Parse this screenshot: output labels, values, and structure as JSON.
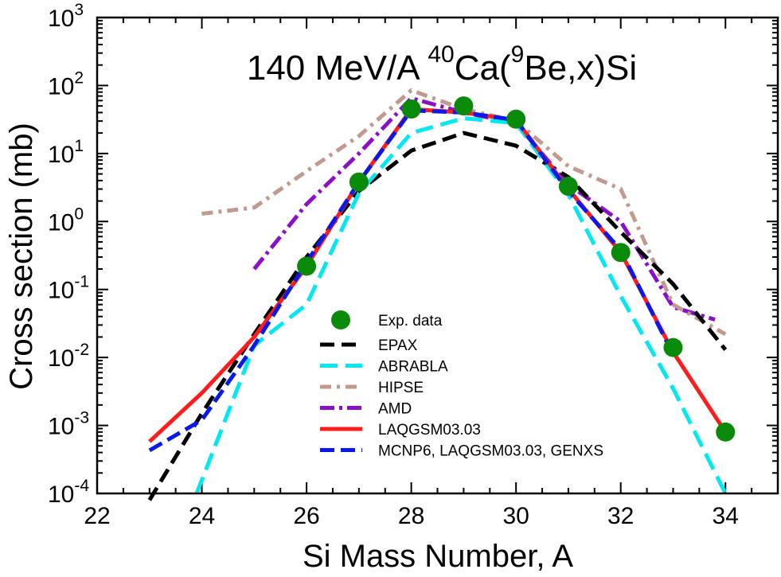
{
  "chart_data": {
    "type": "line",
    "title": {
      "prefix": "140 MeV/A ",
      "sup1": "40",
      "mid": "Ca(",
      "sup2": "9",
      "suffix": "Be,x)Si"
    },
    "xlabel": "Si Mass Number, A",
    "ylabel": "Cross section (mb)",
    "xlim": [
      22,
      35
    ],
    "ylim": [
      0.0001,
      1000
    ],
    "yscale": "log",
    "x_ticks": [
      "22",
      "24",
      "26",
      "28",
      "30",
      "32",
      "34"
    ],
    "y_ticks": [
      {
        "base": "10",
        "exp": "-4"
      },
      {
        "base": "10",
        "exp": "-3"
      },
      {
        "base": "10",
        "exp": "-2"
      },
      {
        "base": "10",
        "exp": "-1"
      },
      {
        "base": "10",
        "exp": "0"
      },
      {
        "base": "10",
        "exp": "1"
      },
      {
        "base": "10",
        "exp": "2"
      },
      {
        "base": "10",
        "exp": "3"
      }
    ],
    "legend_position": "center-bottom",
    "experimental": {
      "name": "Exp. data",
      "color": "#0a8a0a",
      "x": [
        26,
        27,
        28,
        29,
        30,
        31,
        32,
        33,
        34
      ],
      "y": [
        0.22,
        3.8,
        45,
        50,
        32,
        3.3,
        0.35,
        0.014,
        0.0008
      ]
    },
    "series": [
      {
        "name": "EPAX",
        "color": "#000000",
        "dash": "18,9",
        "x": [
          23,
          24,
          25,
          26,
          27,
          28,
          29,
          30,
          31,
          32,
          33,
          34
        ],
        "y": [
          8e-05,
          0.0015,
          0.022,
          0.3,
          2.8,
          11,
          20,
          13,
          4.5,
          0.7,
          0.12,
          0.013
        ]
      },
      {
        "name": "ABRABLA",
        "color": "#00e8f0",
        "dash": "22,10",
        "x": [
          23.9,
          25,
          26,
          27,
          28,
          29,
          30,
          31,
          32,
          33,
          34
        ],
        "y": [
          0.0001,
          0.015,
          0.06,
          2.6,
          20,
          33,
          28,
          2.5,
          0.08,
          0.0035,
          0.0001
        ]
      },
      {
        "name": "HIPSE",
        "color": "#c09a8e",
        "dash": "14,7,4,7",
        "x": [
          24,
          25,
          26,
          27,
          28,
          29,
          30,
          31,
          32,
          33,
          34
        ],
        "y": [
          1.3,
          1.6,
          5.5,
          18,
          85,
          45,
          30,
          6.5,
          3.0,
          0.06,
          0.022
        ]
      },
      {
        "name": "AMD",
        "color": "#8a10c8",
        "dash": "18,6,4,6",
        "x": [
          25,
          26,
          27,
          28,
          29,
          30,
          31,
          32,
          33,
          33.8
        ],
        "y": [
          0.2,
          1.8,
          10,
          65,
          40,
          28,
          3.5,
          1.0,
          0.055,
          0.036
        ]
      },
      {
        "name": "LAQGSM03.03",
        "color": "#ff1c1c",
        "dash": "",
        "x": [
          23,
          24,
          25,
          26,
          27,
          28,
          29,
          30,
          31,
          32,
          33,
          34
        ],
        "y": [
          0.00058,
          0.003,
          0.02,
          0.22,
          3.8,
          45,
          40,
          31,
          3.0,
          0.35,
          0.012,
          0.0008
        ]
      },
      {
        "name": "MCNP6, LAQGSM03.03, GENXS",
        "color": "#0a18e8",
        "dash": "18,8",
        "x": [
          23,
          24,
          25,
          26,
          27,
          28,
          29,
          30,
          31,
          32,
          33
        ],
        "y": [
          0.00043,
          0.0012,
          0.015,
          0.25,
          3.8,
          43,
          40,
          31,
          2.8,
          0.38,
          0.011
        ]
      }
    ]
  }
}
